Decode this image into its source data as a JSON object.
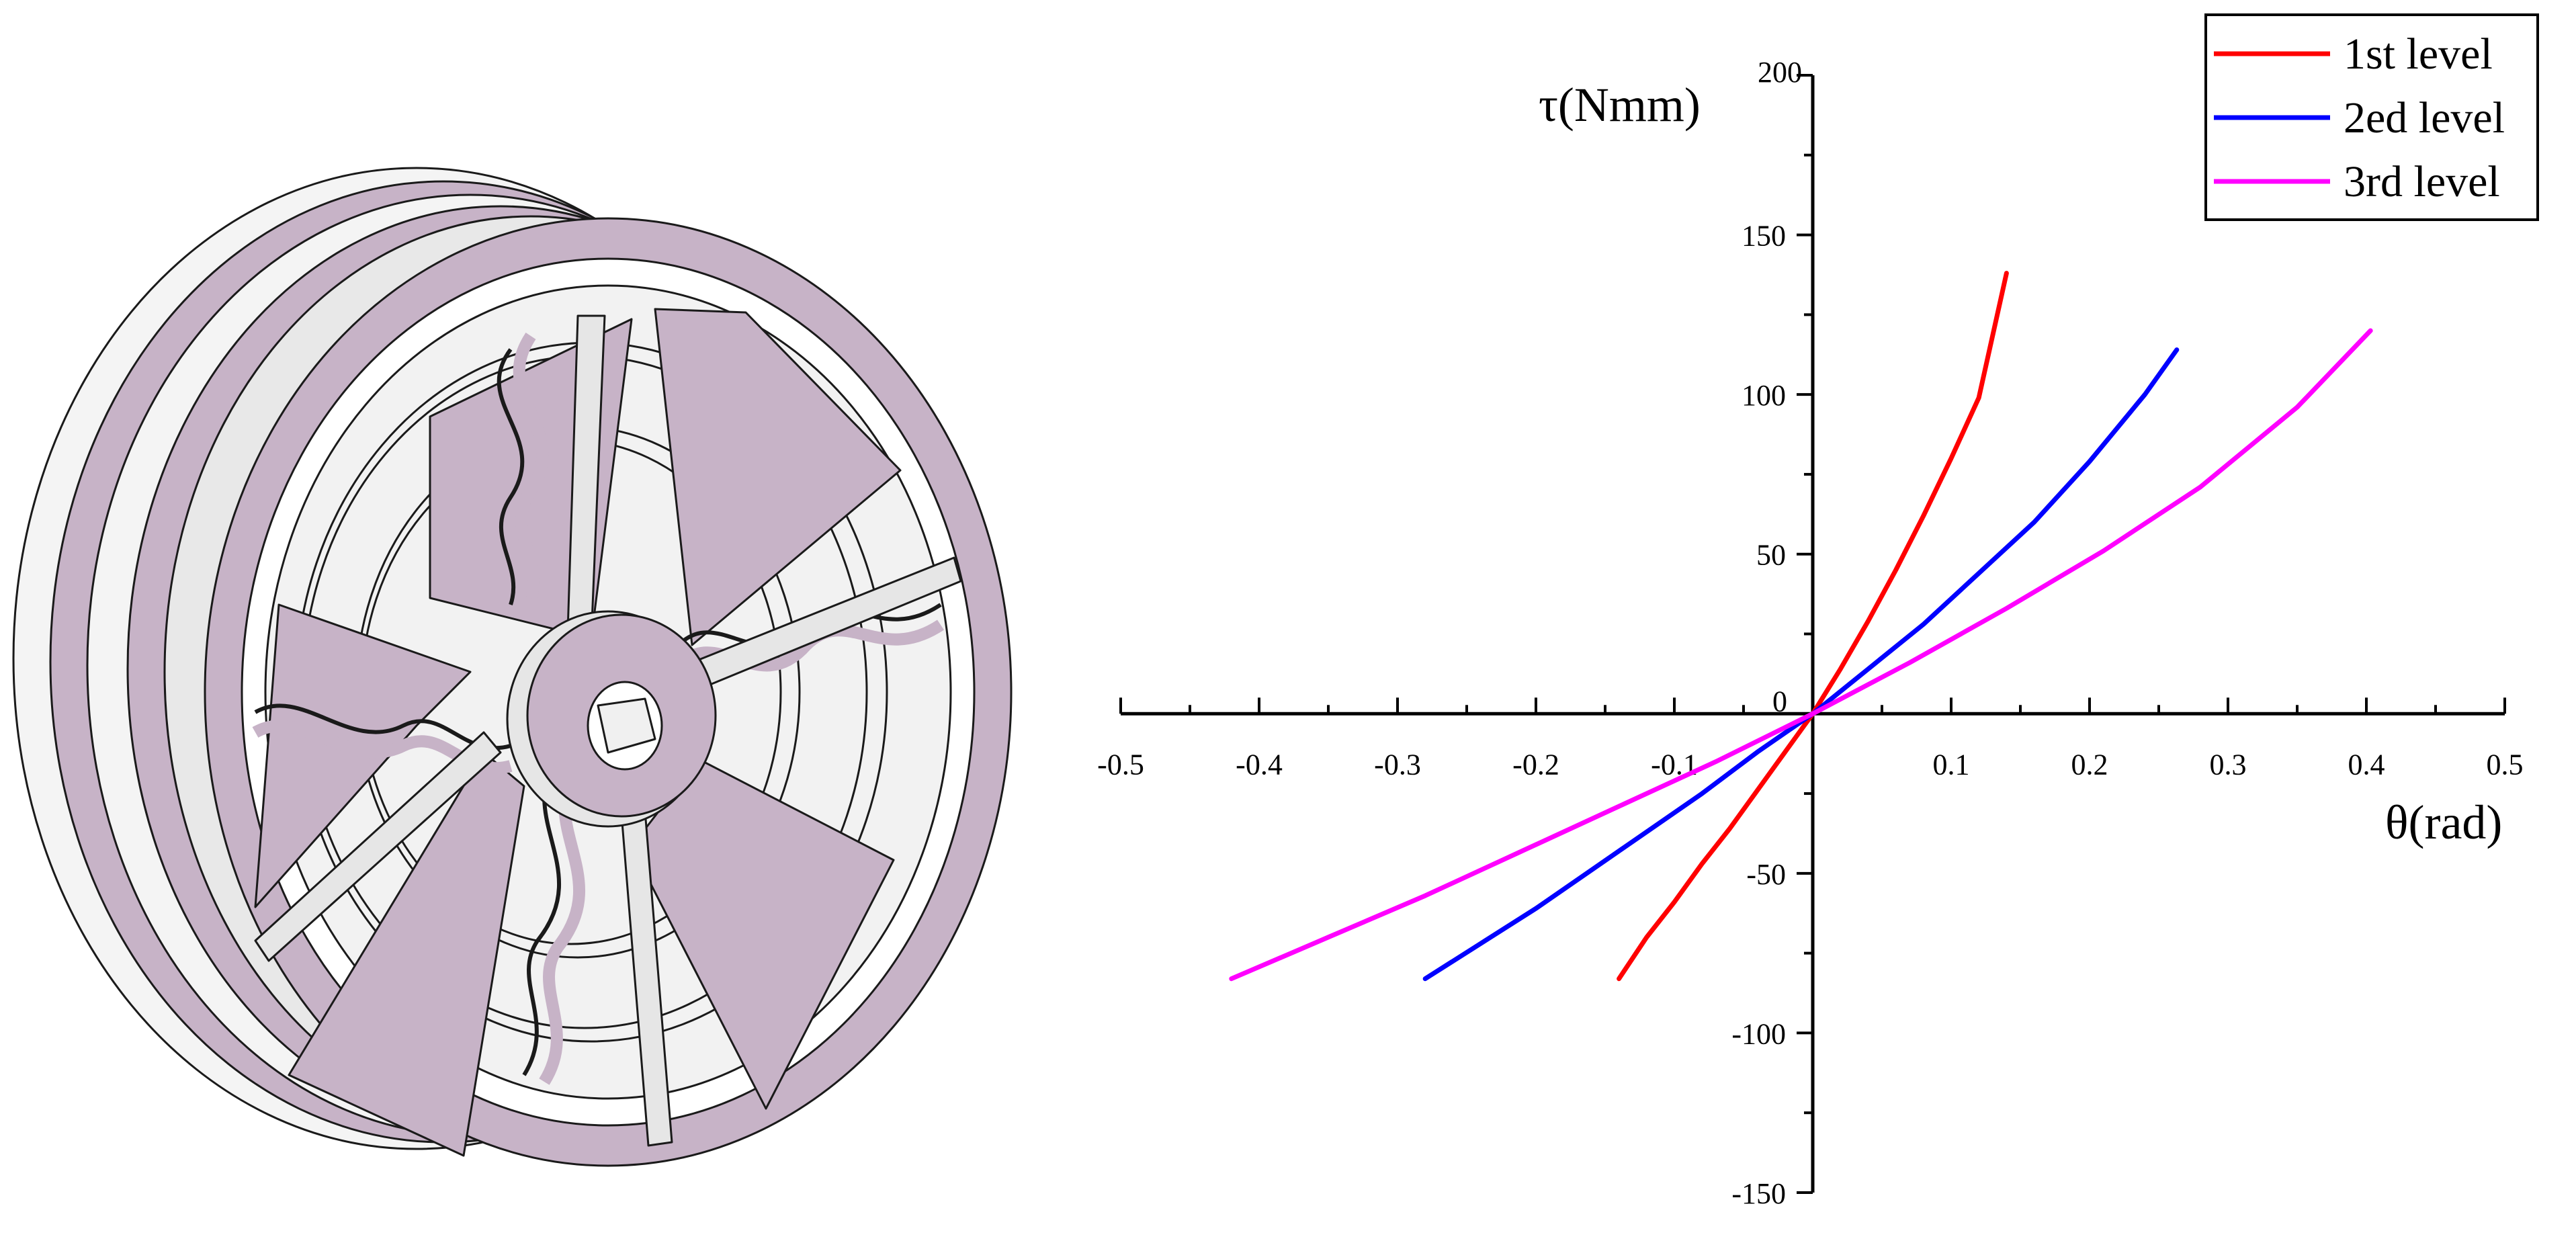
{
  "figure": {
    "illustration": "wheel-3d-model"
  },
  "chart_data": {
    "type": "line",
    "title": "",
    "xlabel": "θ(rad)",
    "ylabel": "τ(Nmm)",
    "xlim": [
      -0.5,
      0.5
    ],
    "ylim": [
      -150,
      200
    ],
    "x_ticks": [
      -0.5,
      -0.4,
      -0.3,
      -0.2,
      -0.1,
      0,
      0.1,
      0.2,
      0.3,
      0.4,
      0.5
    ],
    "x_tick_labels": [
      "-0.5",
      "-0.4",
      "-0.3",
      "-0.2",
      "-0.1",
      "",
      "0.1",
      "0.2",
      "0.3",
      "0.4",
      "0.5"
    ],
    "y_ticks": [
      -150,
      -100,
      -50,
      0,
      50,
      100,
      150,
      200
    ],
    "y_tick_labels": [
      "-150",
      "-100",
      "-50",
      "0",
      "50",
      "100",
      "150",
      "200"
    ],
    "grid": false,
    "legend_position": "top-right",
    "series": [
      {
        "name": "1st level",
        "color": "#ff0000",
        "x": [
          -0.14,
          -0.12,
          -0.1,
          -0.08,
          -0.06,
          -0.04,
          -0.02,
          0,
          0.02,
          0.04,
          0.06,
          0.08,
          0.1,
          0.12,
          0.14
        ],
        "y": [
          -83,
          -70,
          -59,
          -47,
          -36,
          -24,
          -12,
          0,
          14,
          29,
          45,
          62,
          80,
          99,
          138
        ]
      },
      {
        "name": "2ed level",
        "color": "#0000ff",
        "x": [
          -0.28,
          -0.24,
          -0.2,
          -0.16,
          -0.12,
          -0.08,
          -0.04,
          0,
          0.04,
          0.08,
          0.12,
          0.16,
          0.2,
          0.24,
          0.263
        ],
        "y": [
          -83,
          -72,
          -61,
          -49,
          -37,
          -25,
          -12,
          0,
          14,
          28,
          44,
          60,
          79,
          100,
          114
        ]
      },
      {
        "name": "3rd level",
        "color": "#ff00ff",
        "x": [
          -0.42,
          -0.35,
          -0.28,
          -0.21,
          -0.14,
          -0.07,
          0,
          0.07,
          0.14,
          0.21,
          0.28,
          0.35,
          0.403
        ],
        "y": [
          -83,
          -70,
          -57,
          -43,
          -29,
          -15,
          0,
          16,
          33,
          51,
          71,
          96,
          120
        ]
      }
    ]
  }
}
